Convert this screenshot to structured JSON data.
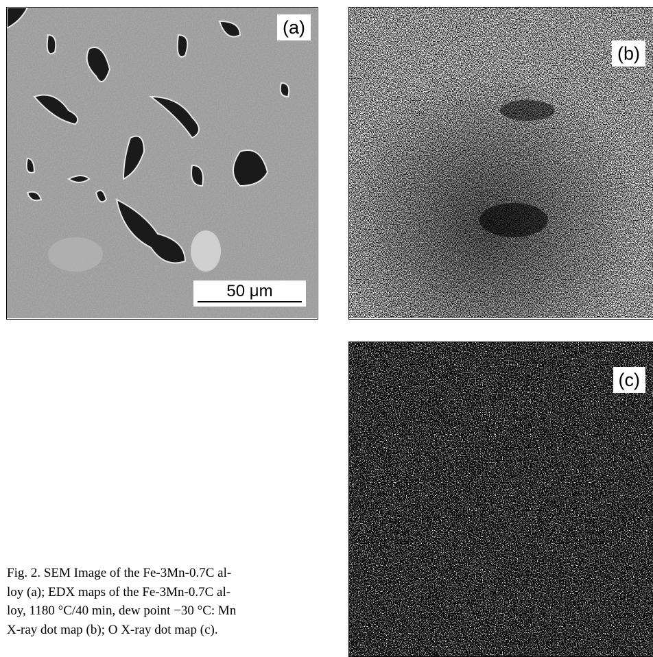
{
  "panels": [
    {
      "label": "(a)",
      "scale_bar": "50 μm"
    },
    {
      "label": "(b)"
    },
    {
      "label": "(c)"
    }
  ],
  "caption": {
    "lines": [
      "Fig. 2. SEM Image of the Fe-3Mn-0.7C al-",
      "loy (a); EDX maps of the Fe-3Mn-0.7C al-",
      "loy, 1180 °C/40 min, dew point −30 °C: Mn",
      "X-ray dot map (b); O X-ray dot map (c)."
    ]
  }
}
